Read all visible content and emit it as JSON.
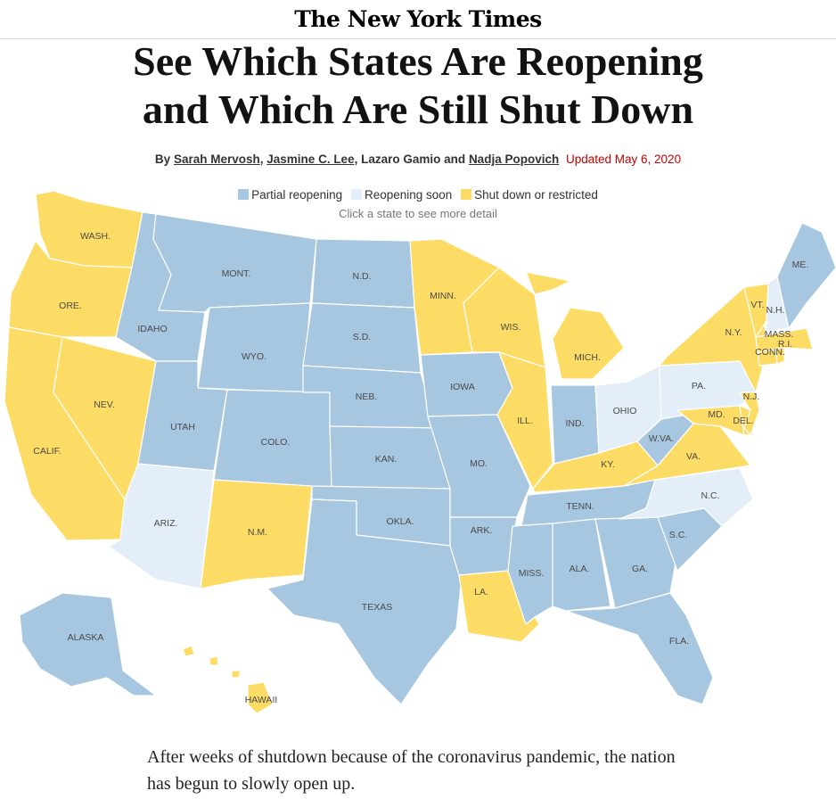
{
  "masthead": {
    "logo": "The New York Times"
  },
  "headline": {
    "line1": "See Which States Are Reopening",
    "line2": "and Which Are Still Shut Down"
  },
  "byline": {
    "prefix": "By",
    "authors": [
      "Sarah Mervosh",
      "Jasmine C. Lee",
      "Lazaro Gamio",
      "Nadja Popovich"
    ],
    "separator1": ",",
    "separator2": ",",
    "conjunction": "and",
    "updated": "Updated May 6, 2020"
  },
  "legend": {
    "items": [
      {
        "label": "Partial reopening",
        "color": "#a7c7e0"
      },
      {
        "label": "Reopening soon",
        "color": "#e3eef8"
      },
      {
        "label": "Shut down or restricted",
        "color": "#fddc66"
      }
    ],
    "hint": "Click a state to see more detail"
  },
  "map": {
    "states": [
      {
        "id": "wa",
        "label": "WASH.",
        "status": "shut"
      },
      {
        "id": "or",
        "label": "ORE.",
        "status": "shut"
      },
      {
        "id": "ca",
        "label": "CALIF.",
        "status": "shut"
      },
      {
        "id": "nv",
        "label": "NEV.",
        "status": "shut"
      },
      {
        "id": "id",
        "label": "IDAHO",
        "status": "partial"
      },
      {
        "id": "mt",
        "label": "MONT.",
        "status": "partial"
      },
      {
        "id": "wy",
        "label": "WYO.",
        "status": "partial"
      },
      {
        "id": "ut",
        "label": "UTAH",
        "status": "partial"
      },
      {
        "id": "az",
        "label": "ARIZ.",
        "status": "soon"
      },
      {
        "id": "co",
        "label": "COLO.",
        "status": "partial"
      },
      {
        "id": "nm",
        "label": "N.M.",
        "status": "shut"
      },
      {
        "id": "nd",
        "label": "N.D.",
        "status": "partial"
      },
      {
        "id": "sd",
        "label": "S.D.",
        "status": "partial"
      },
      {
        "id": "ne",
        "label": "NEB.",
        "status": "partial"
      },
      {
        "id": "ks",
        "label": "KAN.",
        "status": "partial"
      },
      {
        "id": "ok",
        "label": "OKLA.",
        "status": "partial"
      },
      {
        "id": "tx",
        "label": "TEXAS",
        "status": "partial"
      },
      {
        "id": "mn",
        "label": "MINN.",
        "status": "shut"
      },
      {
        "id": "ia",
        "label": "IOWA",
        "status": "partial"
      },
      {
        "id": "mo",
        "label": "MO.",
        "status": "partial"
      },
      {
        "id": "ar",
        "label": "ARK.",
        "status": "partial"
      },
      {
        "id": "la",
        "label": "LA.",
        "status": "shut"
      },
      {
        "id": "wi",
        "label": "WIS.",
        "status": "shut"
      },
      {
        "id": "il",
        "label": "ILL.",
        "status": "shut"
      },
      {
        "id": "mi",
        "label": "MICH.",
        "status": "shut"
      },
      {
        "id": "in",
        "label": "IND.",
        "status": "partial"
      },
      {
        "id": "oh",
        "label": "OHIO",
        "status": "soon"
      },
      {
        "id": "ky",
        "label": "KY.",
        "status": "shut"
      },
      {
        "id": "tn",
        "label": "TENN.",
        "status": "partial"
      },
      {
        "id": "ms",
        "label": "MISS.",
        "status": "partial"
      },
      {
        "id": "al",
        "label": "ALA.",
        "status": "partial"
      },
      {
        "id": "ga",
        "label": "GA.",
        "status": "partial"
      },
      {
        "id": "fl",
        "label": "FLA.",
        "status": "partial"
      },
      {
        "id": "sc",
        "label": "S.C.",
        "status": "partial"
      },
      {
        "id": "nc",
        "label": "N.C.",
        "status": "soon"
      },
      {
        "id": "va",
        "label": "VA.",
        "status": "shut"
      },
      {
        "id": "wv",
        "label": "W.VA.",
        "status": "partial"
      },
      {
        "id": "pa",
        "label": "PA.",
        "status": "soon"
      },
      {
        "id": "ny",
        "label": "N.Y.",
        "status": "shut"
      },
      {
        "id": "md",
        "label": "MD.",
        "status": "shut"
      },
      {
        "id": "de",
        "label": "DEL.",
        "status": "shut"
      },
      {
        "id": "nj",
        "label": "N.J.",
        "status": "shut"
      },
      {
        "id": "ct",
        "label": "CONN.",
        "status": "shut"
      },
      {
        "id": "ri",
        "label": "R.I.",
        "status": "shut"
      },
      {
        "id": "ma",
        "label": "MASS.",
        "status": "shut"
      },
      {
        "id": "vt",
        "label": "VT.",
        "status": "shut"
      },
      {
        "id": "nh",
        "label": "N.H.",
        "status": "soon"
      },
      {
        "id": "me",
        "label": "ME.",
        "status": "partial"
      },
      {
        "id": "ak",
        "label": "ALASKA",
        "status": "partial"
      },
      {
        "id": "hi",
        "label": "HAWAII",
        "status": "shut"
      }
    ]
  },
  "article": {
    "intro": "After weeks of shutdown because of the coronavirus pandemic, the nation has begun to slowly open up."
  }
}
